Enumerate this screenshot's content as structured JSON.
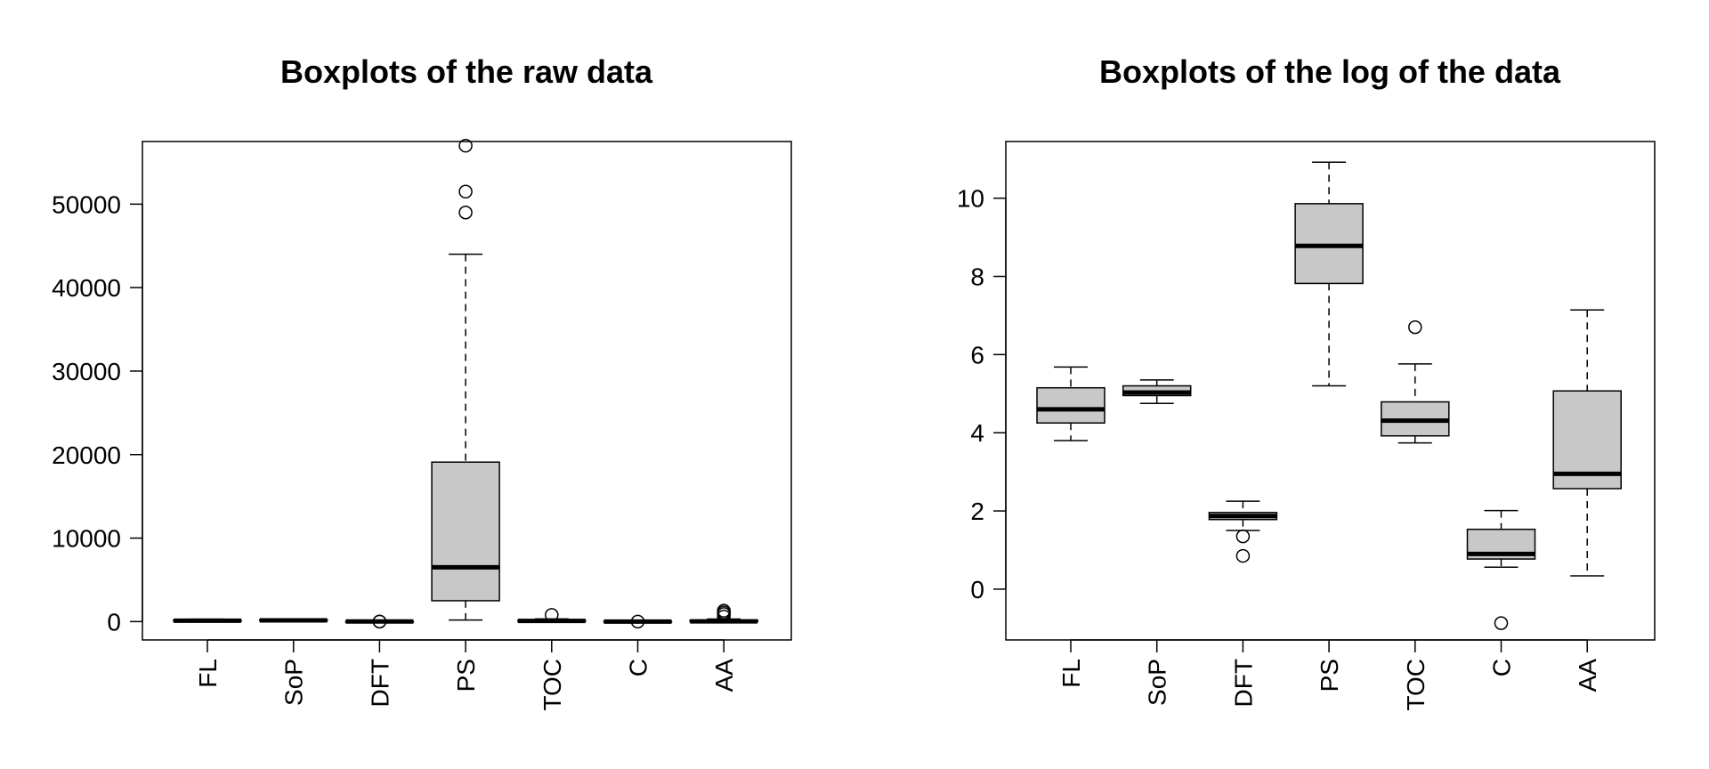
{
  "chart_data": [
    {
      "type": "boxplot",
      "title": "Boxplots of the raw data",
      "xlabel": "",
      "ylabel": "",
      "categories": [
        "FL",
        "SoP",
        "DFT",
        "PS",
        "TOC",
        "C",
        "AA"
      ],
      "ylim": [
        -2200,
        57500
      ],
      "yticks": [
        0,
        10000,
        20000,
        30000,
        40000,
        50000
      ],
      "ytick_labels": [
        "0",
        "10000",
        "20000",
        "30000",
        "40000",
        "50000"
      ],
      "boxes": [
        {
          "category": "FL",
          "whisker_low": 45,
          "q1": 70,
          "median": 100,
          "q3": 170,
          "whisker_high": 290,
          "outliers": []
        },
        {
          "category": "SoP",
          "whisker_low": 115,
          "q1": 140,
          "median": 150,
          "q3": 180,
          "whisker_high": 210,
          "outliers": []
        },
        {
          "category": "DFT",
          "whisker_low": 4,
          "q1": 6,
          "median": 6.5,
          "q3": 7,
          "whisker_high": 9,
          "outliers": [
            2.3,
            3.7
          ]
        },
        {
          "category": "PS",
          "whisker_low": 180,
          "q1": 2500,
          "median": 6500,
          "q3": 19100,
          "whisker_high": 44000,
          "outliers": [
            49000,
            51500,
            57000
          ]
        },
        {
          "category": "TOC",
          "whisker_low": 42,
          "q1": 50,
          "median": 75,
          "q3": 120,
          "whisker_high": 320,
          "outliers": [
            800
          ]
        },
        {
          "category": "C",
          "whisker_low": 1.7,
          "q1": 2.2,
          "median": 2.5,
          "q3": 4.6,
          "whisker_high": 7.5,
          "outliers": [
            0.4
          ]
        },
        {
          "category": "AA",
          "whisker_low": 1.4,
          "q1": 13,
          "median": 19,
          "q3": 160,
          "whisker_high": 300,
          "outliers": [
            600,
            900,
            1100,
            1300
          ]
        }
      ]
    },
    {
      "type": "boxplot",
      "title": "Boxplots of the log of the data",
      "xlabel": "",
      "ylabel": "",
      "categories": [
        "FL",
        "SoP",
        "DFT",
        "PS",
        "TOC",
        "C",
        "AA"
      ],
      "ylim": [
        -1.3,
        11.45
      ],
      "yticks": [
        0,
        2,
        4,
        6,
        8,
        10
      ],
      "ytick_labels": [
        "0",
        "2",
        "4",
        "6",
        "8",
        "10"
      ],
      "boxes": [
        {
          "category": "FL",
          "whisker_low": 3.8,
          "q1": 4.25,
          "median": 4.6,
          "q3": 5.15,
          "whisker_high": 5.68,
          "outliers": []
        },
        {
          "category": "SoP",
          "whisker_low": 4.75,
          "q1": 4.95,
          "median": 5.03,
          "q3": 5.2,
          "whisker_high": 5.35,
          "outliers": []
        },
        {
          "category": "DFT",
          "whisker_low": 1.5,
          "q1": 1.78,
          "median": 1.87,
          "q3": 1.96,
          "whisker_high": 2.25,
          "outliers": [
            1.35,
            0.85
          ]
        },
        {
          "category": "PS",
          "whisker_low": 5.2,
          "q1": 7.82,
          "median": 8.78,
          "q3": 9.86,
          "whisker_high": 10.92,
          "outliers": []
        },
        {
          "category": "TOC",
          "whisker_low": 3.74,
          "q1": 3.92,
          "median": 4.31,
          "q3": 4.79,
          "whisker_high": 5.76,
          "outliers": [
            6.7
          ]
        },
        {
          "category": "C",
          "whisker_low": 0.56,
          "q1": 0.77,
          "median": 0.9,
          "q3": 1.53,
          "whisker_high": 2.01,
          "outliers": [
            -0.87
          ]
        },
        {
          "category": "AA",
          "whisker_low": 0.34,
          "q1": 2.57,
          "median": 2.95,
          "q3": 5.07,
          "whisker_high": 7.14,
          "outliers": []
        }
      ]
    }
  ]
}
